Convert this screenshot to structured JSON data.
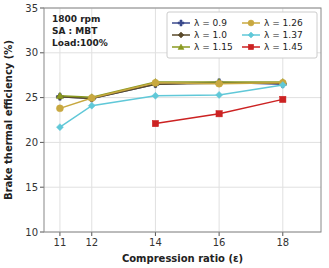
{
  "chart_data": {
    "type": "line",
    "x": [
      11,
      12,
      14,
      16,
      18
    ],
    "series": [
      {
        "name": "λ = 0.9",
        "color": "#3b4a8c",
        "marker": "plus",
        "line_style": "solid",
        "values": [
          25.1,
          24.9,
          26.5,
          26.7,
          26.5
        ]
      },
      {
        "name": "λ = 1.0",
        "color": "#5a4a2a",
        "marker": "diamond",
        "line_style": "solid",
        "values": [
          25.1,
          24.9,
          26.5,
          26.6,
          26.6
        ]
      },
      {
        "name": "λ = 1.15",
        "color": "#8a9a20",
        "marker": "triangle",
        "line_style": "solid",
        "values": [
          25.2,
          25.05,
          26.75,
          26.75,
          26.75
        ]
      },
      {
        "name": "λ = 1.26",
        "color": "#c8a840",
        "marker": "circle",
        "line_style": "solid",
        "values": [
          23.8,
          24.95,
          26.65,
          26.55,
          26.65
        ]
      },
      {
        "name": "λ = 1.37",
        "color": "#60c8d8",
        "marker": "diamond",
        "line_style": "solid",
        "values": [
          21.7,
          24.1,
          25.2,
          25.3,
          26.4
        ]
      },
      {
        "name": "λ = 1.45",
        "color": "#cc2222",
        "marker": "square",
        "line_style": "solid",
        "values": [
          null,
          null,
          22.1,
          23.2,
          24.8
        ]
      }
    ],
    "xlabel": "Compression ratio (ε)",
    "ylabel": "Brake thermal efficiency (%)",
    "annotation": "1800 rpm\nSA : MBT\nLoad:100%",
    "xlim": [
      10.5,
      19.2
    ],
    "ylim": [
      10,
      35
    ],
    "xticks": [
      11,
      12,
      14,
      16,
      18
    ],
    "yticks": [
      10,
      15,
      20,
      25,
      30,
      35
    ],
    "grid": true,
    "legend": "upper right"
  }
}
